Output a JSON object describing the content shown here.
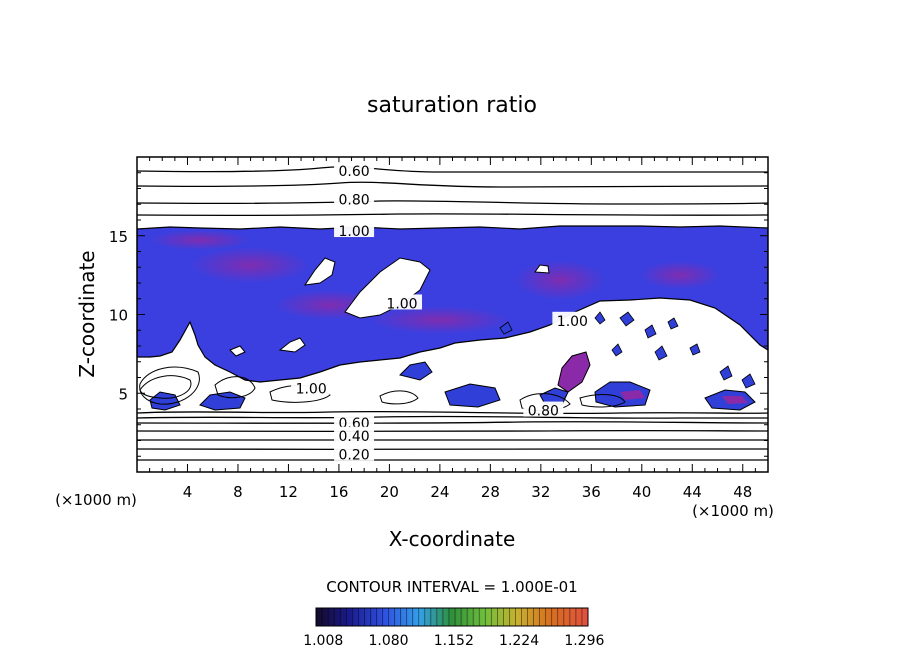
{
  "chart_data": {
    "type": "heatmap",
    "title": "saturation ratio",
    "xlabel": "X-coordinate",
    "ylabel": "Z-coordinate",
    "x_unit": "(×1000 m)",
    "z_unit": "(×1000 m)",
    "xlim": [
      0,
      50
    ],
    "zlim": [
      0,
      20
    ],
    "x_ticks": [
      4,
      8,
      12,
      16,
      20,
      24,
      28,
      32,
      36,
      40,
      44,
      48
    ],
    "z_ticks": [
      5,
      10,
      15
    ],
    "contour_interval_text": "CONTOUR INTERVAL = 1.000E-01",
    "contour_labels": [
      {
        "text": "0.60",
        "x": 17.2,
        "z": 19.1
      },
      {
        "text": "0.80",
        "x": 17.2,
        "z": 17.3
      },
      {
        "text": "1.00",
        "x": 17.2,
        "z": 15.3
      },
      {
        "text": "1.00",
        "x": 21.0,
        "z": 10.7
      },
      {
        "text": "1.00",
        "x": 34.5,
        "z": 9.6
      },
      {
        "text": "1.00",
        "x": 13.8,
        "z": 5.3
      },
      {
        "text": "0.80",
        "x": 32.2,
        "z": 3.9
      },
      {
        "text": "0.60",
        "x": 17.2,
        "z": 3.1
      },
      {
        "text": "0.40",
        "x": 17.2,
        "z": 2.3
      },
      {
        "text": "0.20",
        "x": 17.2,
        "z": 1.1
      }
    ],
    "colorbar": {
      "range": [
        1.0,
        1.3
      ],
      "labels": [
        "1.008",
        "1.080",
        "1.152",
        "1.224",
        "1.296"
      ],
      "colors": [
        "#140a2a",
        "#1a1a8a",
        "#2f4fe0",
        "#33a0e8",
        "#2f8f3a",
        "#6fbf3c",
        "#c8b030",
        "#d87020",
        "#c82020",
        "#e06050"
      ]
    },
    "legend": "bottom"
  }
}
